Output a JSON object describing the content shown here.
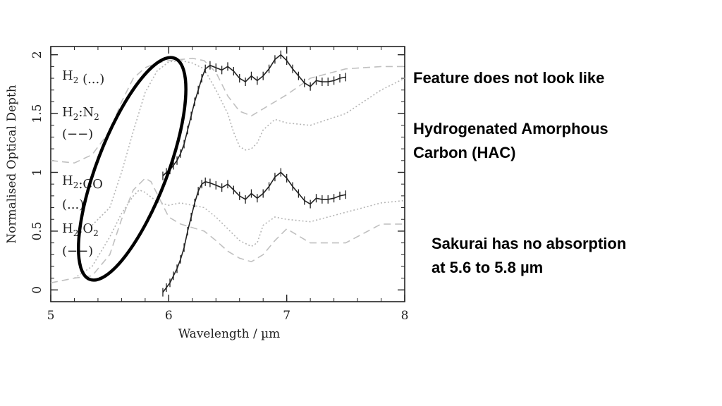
{
  "slide": {
    "notes": {
      "feature_line": "Feature does not look like",
      "hac_line1": "Hydrogenated Amorphous",
      "hac_line2": "Carbon (HAC)",
      "sakurai_line1": "Sakurai has no absorption",
      "sakurai_line2": "at 5.6 to 5.8 µm"
    }
  },
  "chart_data": {
    "type": "line",
    "title": "",
    "xlabel": "Wavelength / µm",
    "ylabel": "Normalised Optical Depth",
    "xlim": [
      5,
      8
    ],
    "ylim": [
      -0.1,
      2.07
    ],
    "xticks": [
      5,
      6,
      7,
      8
    ],
    "yticks": [
      0,
      0.5,
      1,
      1.5,
      2
    ],
    "ytick_labels": [
      "0",
      "0.5",
      "1",
      "1.5",
      "2"
    ],
    "grid": false,
    "labels": [
      {
        "id": "h2_top",
        "base": "H",
        "sub": "2",
        "tail": " (...)"
      },
      {
        "id": "h2n2_l1",
        "base": "H",
        "sub": "2",
        "mid": ":N",
        "sub2": "2",
        "tail": ""
      },
      {
        "id": "h2n2_l2",
        "base": "(−−)",
        "sub": "",
        "tail": ""
      },
      {
        "id": "h2co_l1",
        "base": "H",
        "sub": "2",
        "tail": ":CO"
      },
      {
        "id": "h2co_l2",
        "base": "(...)",
        "sub": "",
        "tail": ""
      },
      {
        "id": "h2o2_l1",
        "base": "H",
        "sub": "2",
        "mid": ":O",
        "sub2": "2",
        "tail": ""
      },
      {
        "id": "h2o2_l2",
        "base": "(−−)",
        "sub": "",
        "tail": ""
      }
    ],
    "series": [
      {
        "name": "Sakurai (upper)",
        "style": "solid-errorbars",
        "color": "#222222",
        "x": [
          5.95,
          5.98,
          6.01,
          6.04,
          6.07,
          6.1,
          6.13,
          6.16,
          6.19,
          6.22,
          6.25,
          6.28,
          6.31,
          6.35,
          6.4,
          6.45,
          6.5,
          6.55,
          6.6,
          6.65,
          6.7,
          6.75,
          6.8,
          6.85,
          6.9,
          6.95,
          7.0,
          7.05,
          7.1,
          7.15,
          7.2,
          7.25,
          7.3,
          7.35,
          7.4,
          7.45,
          7.5
        ],
        "y": [
          0.97,
          1.0,
          1.02,
          1.06,
          1.1,
          1.16,
          1.24,
          1.36,
          1.48,
          1.6,
          1.7,
          1.8,
          1.88,
          1.91,
          1.89,
          1.87,
          1.9,
          1.86,
          1.8,
          1.77,
          1.82,
          1.78,
          1.82,
          1.88,
          1.96,
          2.0,
          1.95,
          1.88,
          1.82,
          1.76,
          1.73,
          1.78,
          1.77,
          1.77,
          1.78,
          1.8,
          1.81
        ]
      },
      {
        "name": "Sakurai (lower)",
        "style": "solid-errorbars",
        "color": "#222222",
        "x": [
          5.95,
          5.98,
          6.01,
          6.04,
          6.07,
          6.1,
          6.13,
          6.16,
          6.19,
          6.22,
          6.25,
          6.28,
          6.31,
          6.35,
          6.4,
          6.45,
          6.5,
          6.55,
          6.6,
          6.65,
          6.7,
          6.75,
          6.8,
          6.85,
          6.9,
          6.95,
          7.0,
          7.05,
          7.1,
          7.15,
          7.2,
          7.25,
          7.3,
          7.35,
          7.4,
          7.45,
          7.5
        ],
        "y": [
          -0.02,
          0.02,
          0.06,
          0.12,
          0.18,
          0.26,
          0.36,
          0.5,
          0.62,
          0.74,
          0.84,
          0.9,
          0.92,
          0.91,
          0.89,
          0.87,
          0.9,
          0.85,
          0.8,
          0.77,
          0.82,
          0.78,
          0.82,
          0.88,
          0.96,
          1.0,
          0.95,
          0.88,
          0.82,
          0.76,
          0.73,
          0.78,
          0.77,
          0.77,
          0.78,
          0.8,
          0.81
        ]
      },
      {
        "name": "H2 (upper, dotted)",
        "style": "dotted",
        "color": "#b5b5b5",
        "x": [
          5.35,
          5.5,
          5.6,
          5.7,
          5.8,
          5.9,
          6.0,
          6.1,
          6.2,
          6.3,
          6.4,
          6.5,
          6.55,
          6.6,
          6.65,
          6.7,
          6.75,
          6.8,
          6.9,
          7.0,
          7.2,
          7.5,
          7.8,
          8.0
        ],
        "y": [
          0.55,
          0.7,
          1.0,
          1.35,
          1.68,
          1.86,
          1.94,
          1.95,
          1.93,
          1.88,
          1.7,
          1.5,
          1.34,
          1.22,
          1.19,
          1.2,
          1.25,
          1.36,
          1.45,
          1.42,
          1.4,
          1.5,
          1.7,
          1.8
        ]
      },
      {
        "name": "H2:N2 (upper, dashed)",
        "style": "dashed",
        "color": "#c0c0c0",
        "x": [
          5.0,
          5.2,
          5.35,
          5.5,
          5.6,
          5.7,
          5.8,
          5.9,
          6.0,
          6.1,
          6.2,
          6.3,
          6.4,
          6.5,
          6.6,
          6.7,
          6.8,
          6.9,
          7.0,
          7.2,
          7.5,
          7.8,
          8.0
        ],
        "y": [
          1.1,
          1.08,
          1.15,
          1.35,
          1.6,
          1.8,
          1.89,
          1.93,
          1.95,
          1.96,
          1.97,
          1.95,
          1.85,
          1.65,
          1.52,
          1.48,
          1.54,
          1.6,
          1.66,
          1.8,
          1.88,
          1.9,
          1.9
        ]
      },
      {
        "name": "H2:CO (lower, dotted)",
        "style": "dotted",
        "color": "#b5b5b5",
        "x": [
          5.2,
          5.35,
          5.5,
          5.6,
          5.7,
          5.75,
          5.8,
          5.9,
          6.0,
          6.1,
          6.2,
          6.3,
          6.4,
          6.5,
          6.6,
          6.7,
          6.75,
          6.8,
          6.9,
          7.0,
          7.2,
          7.5,
          7.8,
          8.0
        ],
        "y": [
          0.1,
          0.2,
          0.45,
          0.65,
          0.8,
          0.85,
          0.83,
          0.75,
          0.72,
          0.74,
          0.72,
          0.7,
          0.62,
          0.52,
          0.42,
          0.37,
          0.4,
          0.55,
          0.62,
          0.6,
          0.58,
          0.66,
          0.74,
          0.76
        ]
      },
      {
        "name": "H2:O2 (lower, dashed)",
        "style": "dashed",
        "color": "#c0c0c0",
        "x": [
          5.0,
          5.2,
          5.35,
          5.5,
          5.6,
          5.7,
          5.8,
          5.85,
          5.9,
          6.0,
          6.1,
          6.2,
          6.3,
          6.4,
          6.5,
          6.6,
          6.7,
          6.8,
          6.9,
          7.0,
          7.2,
          7.5,
          7.8,
          8.0
        ],
        "y": [
          0.06,
          0.1,
          0.12,
          0.3,
          0.6,
          0.85,
          0.95,
          0.92,
          0.82,
          0.62,
          0.56,
          0.53,
          0.5,
          0.42,
          0.33,
          0.27,
          0.24,
          0.3,
          0.42,
          0.52,
          0.4,
          0.4,
          0.56,
          0.56
        ]
      }
    ],
    "annotation": {
      "type": "ellipse",
      "label": "highlighted region",
      "center": [
        5.69,
        1.03
      ],
      "note": "black outline ellipse around 5.4–6.1 µm rise"
    }
  }
}
